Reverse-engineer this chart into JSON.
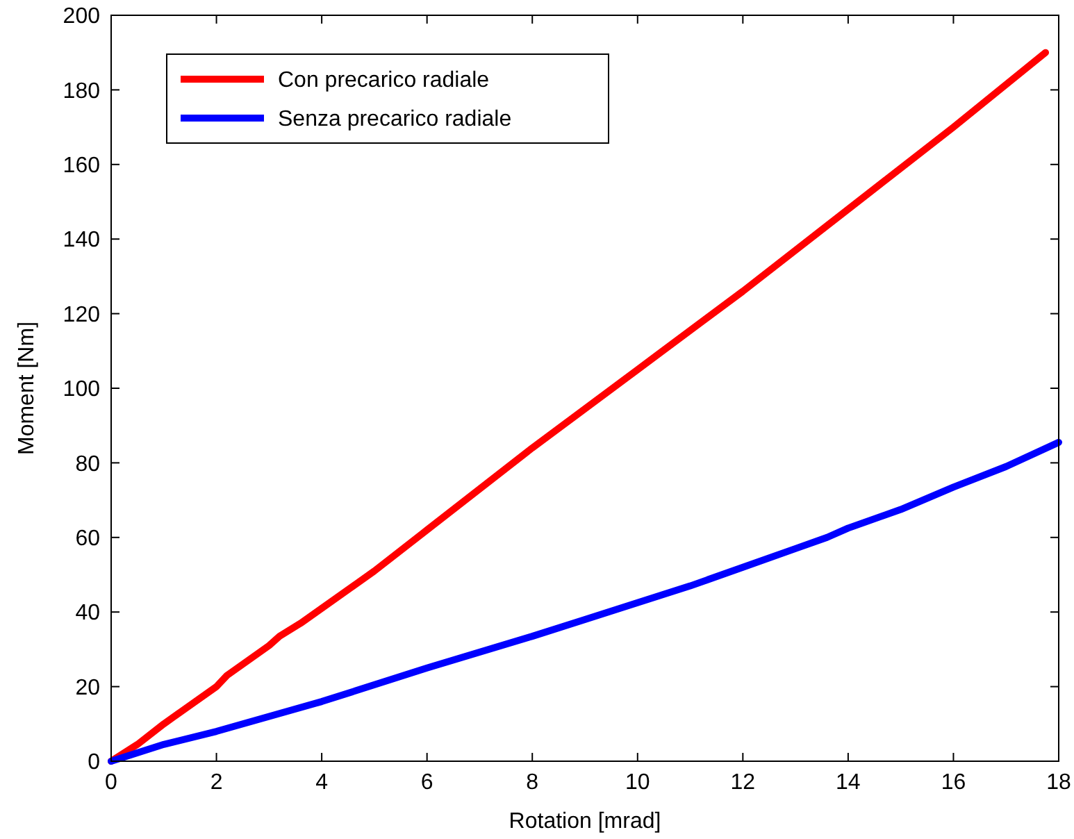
{
  "chart_data": {
    "type": "line",
    "xlabel": "Rotation [mrad]",
    "ylabel": "Moment [Nm]",
    "xlim": [
      0,
      18
    ],
    "ylim": [
      0,
      200
    ],
    "xticks": [
      0,
      2,
      4,
      6,
      8,
      10,
      12,
      14,
      16,
      18
    ],
    "yticks": [
      0,
      20,
      40,
      60,
      80,
      100,
      120,
      140,
      160,
      180,
      200
    ],
    "grid": false,
    "legend": "top left",
    "line_style": "solid",
    "marker": "none",
    "series": [
      {
        "name": "Con precarico radiale",
        "color": "#ff0000",
        "x": [
          0,
          0.5,
          1,
          2,
          2.2,
          3,
          3.2,
          3.6,
          4,
          5,
          6,
          8,
          10,
          12,
          14,
          16,
          17.75
        ],
        "values": [
          0,
          4.5,
          10,
          20,
          23,
          31,
          33.5,
          37,
          41,
          51,
          62,
          84,
          105,
          126,
          148,
          170,
          190
        ]
      },
      {
        "name": "Senza precarico radiale",
        "color": "#0000ff",
        "x": [
          0,
          1,
          2,
          4,
          6,
          8,
          9,
          10,
          11,
          12,
          13,
          13.6,
          14,
          15,
          16,
          17,
          18
        ],
        "values": [
          0,
          4.5,
          8,
          16,
          25,
          33.5,
          38,
          42.5,
          47,
          52,
          57,
          60,
          62.5,
          67.5,
          73.5,
          79,
          85.5
        ]
      }
    ]
  }
}
